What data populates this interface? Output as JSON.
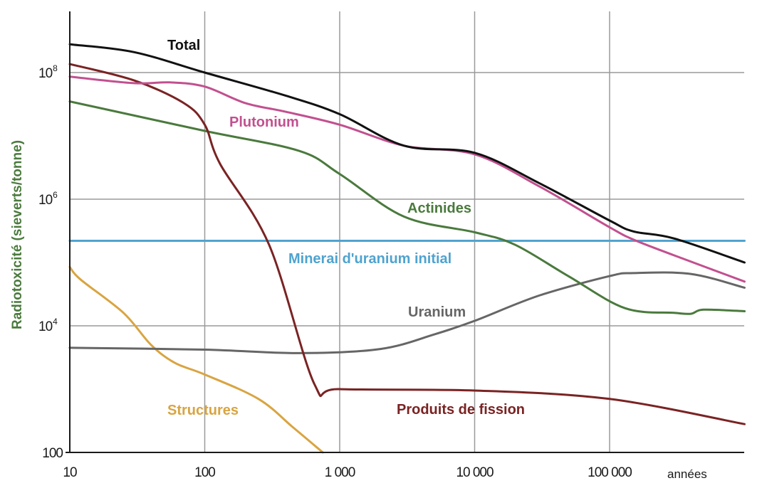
{
  "chart_data": {
    "type": "line",
    "title": "",
    "xlabel": "années",
    "ylabel": "Radiotoxicité (sieverts/tonne)",
    "xscale": "log",
    "yscale": "log",
    "xlim": [
      10,
      1000000
    ],
    "ylim": [
      100,
      1000000000
    ],
    "grid": true,
    "legend": "inline-labels",
    "x_ticks": [
      {
        "value": 10,
        "label": "10"
      },
      {
        "value": 100,
        "label": "100"
      },
      {
        "value": 1000,
        "label": "1 000"
      },
      {
        "value": 10000,
        "label": "10 000"
      },
      {
        "value": 100000,
        "label": "100 000"
      }
    ],
    "y_ticks": [
      {
        "value": 100,
        "label": "100",
        "base": "",
        "exp": ""
      },
      {
        "value": 10000,
        "label": "10^4",
        "base": "10",
        "exp": "4"
      },
      {
        "value": 1000000,
        "label": "10^6",
        "base": "10",
        "exp": "6"
      },
      {
        "value": 100000000,
        "label": "10^8",
        "base": "10",
        "exp": "8"
      }
    ],
    "series": [
      {
        "name": "Total",
        "color": "#111111",
        "label_at": [
          10,
          100000000
        ],
        "x": [
          10,
          30,
          100,
          400,
          1000,
          3000,
          10000,
          30000,
          100000,
          150000,
          300000,
          1000000
        ],
        "y": [
          280000000,
          210000000,
          100000000,
          43000000,
          22000000,
          7000000,
          5400000,
          1800000,
          460000,
          310000,
          240000,
          100000
        ]
      },
      {
        "name": "Plutonium",
        "color": "#c2508f",
        "label_at": [
          150,
          22000000
        ],
        "x": [
          10,
          30,
          55,
          100,
          200,
          400,
          1000,
          3000,
          10000,
          30000,
          100000,
          150000,
          300000,
          1000000
        ],
        "y": [
          86000000,
          68000000,
          70000000,
          60000000,
          33000000,
          24000000,
          15000000,
          7000000,
          5100000,
          1600000,
          360000,
          230000,
          130000,
          50000
        ]
      },
      {
        "name": "Actinides",
        "color": "#4a7a3d",
        "label_at": [
          3000,
          1200000
        ],
        "x": [
          10,
          100,
          500,
          1000,
          3000,
          10000,
          20000,
          50000,
          130000,
          300000,
          400000,
          500000,
          1000000
        ],
        "y": [
          35000000,
          12000000,
          5800000,
          2500000,
          530000,
          300000,
          190000,
          60000,
          19000,
          16000,
          15500,
          18000,
          17000
        ]
      },
      {
        "name": "Minerai d'uranium initial",
        "color": "#4fa3cf",
        "label_at": [
          280,
          85000
        ],
        "x": [
          10,
          1000000
        ],
        "y": [
          220000,
          220000
        ]
      },
      {
        "name": "Uranium",
        "color": "#666666",
        "label_at": [
          3000,
          15000
        ],
        "x": [
          10,
          100,
          500,
          2000,
          5000,
          10000,
          30000,
          100000,
          150000,
          400000,
          1000000
        ],
        "y": [
          4500,
          4200,
          3700,
          4300,
          7300,
          12000,
          30000,
          61000,
          68000,
          66000,
          40000
        ]
      },
      {
        "name": "Produits de fission",
        "color": "#7a2323",
        "label_at": [
          1600,
          420
        ],
        "x": [
          10,
          30,
          70,
          100,
          130,
          300,
          650,
          1000,
          10000,
          100000,
          1000000
        ],
        "y": [
          136000000,
          75000000,
          33000000,
          15000000,
          3600000,
          190000,
          1200,
          1000,
          950,
          700,
          280
        ]
      },
      {
        "name": "Structures",
        "color": "#d9a441",
        "label_at": [
          75,
          420
        ],
        "x": [
          10,
          12,
          25,
          40,
          60,
          100,
          250,
          450,
          750
        ],
        "y": [
          85000,
          54000,
          16000,
          5000,
          2600,
          1700,
          700,
          250,
          100
        ]
      }
    ]
  }
}
